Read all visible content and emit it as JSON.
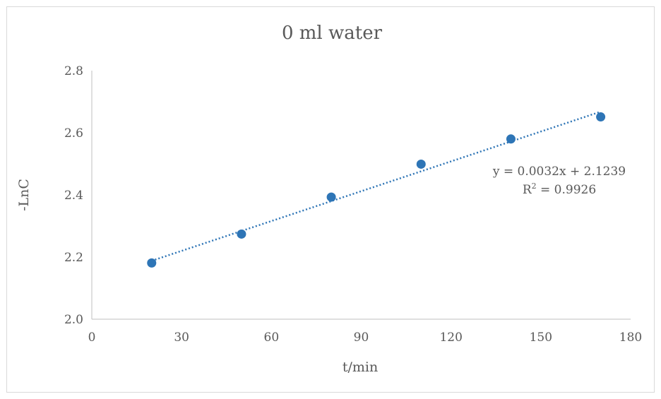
{
  "chart_data": {
    "type": "scatter",
    "title": "0 ml water",
    "xlabel": "t/min",
    "ylabel": "-LnC",
    "xlim": [
      0,
      180
    ],
    "ylim": [
      2.0,
      2.8
    ],
    "x_ticks": [
      "0",
      "30",
      "60",
      "90",
      "120",
      "150",
      "180"
    ],
    "y_ticks": [
      "2.0",
      "2.2",
      "2.4",
      "2.6",
      "2.8"
    ],
    "grid": false,
    "legend": "none",
    "series": [
      {
        "x": [
          20,
          50,
          80,
          110,
          140,
          170
        ],
        "y": [
          2.181,
          2.274,
          2.393,
          2.499,
          2.58,
          2.651
        ],
        "color": "#2e75b6"
      }
    ],
    "trendline": {
      "type": "linear",
      "slope": 0.0032,
      "intercept": 2.1239,
      "x_range": [
        20,
        170
      ],
      "style": "dotted",
      "equation_label": "y = 0.0032x + 2.1239",
      "r2_prefix": "R",
      "r2_sup": "2",
      "r2_value": " = 0.9926"
    }
  }
}
